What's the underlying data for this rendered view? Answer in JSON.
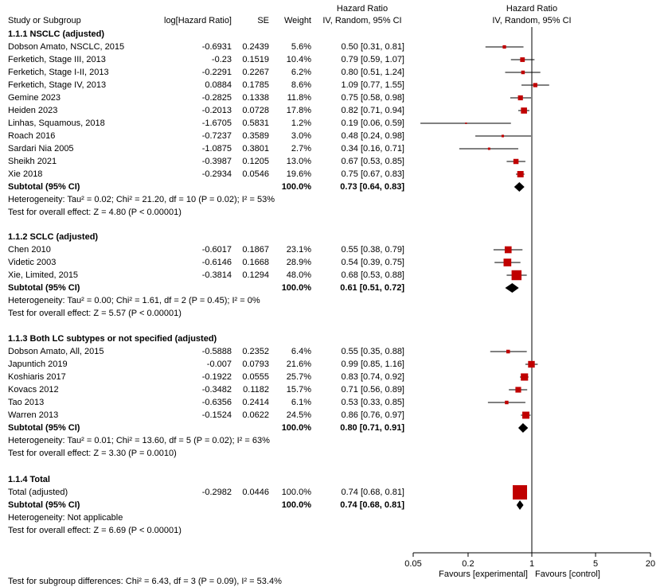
{
  "headers": {
    "study": "Study or Subgroup",
    "estimate": "log[Hazard Ratio]",
    "se": "SE",
    "weight": "Weight",
    "hr_top": "Hazard Ratio",
    "hr_method": "IV, Random, 95% CI",
    "plot_top": "Hazard Ratio",
    "plot_method": "IV, Random, 95% CI"
  },
  "groups": [
    {
      "title": "1.1.1 NSCLC (adjusted)",
      "studies": [
        {
          "name": "Dobson Amato, NSCLC, 2015",
          "est": "-0.6931",
          "se": "0.2439",
          "weight": "5.6%",
          "ci": "0.50 [0.31, 0.81]"
        },
        {
          "name": "Ferketich, Stage III, 2013",
          "est": "-0.23",
          "se": "0.1519",
          "weight": "10.4%",
          "ci": "0.79 [0.59, 1.07]"
        },
        {
          "name": "Ferketich, Stage I-II, 2013",
          "est": "-0.2291",
          "se": "0.2267",
          "weight": "6.2%",
          "ci": "0.80 [0.51, 1.24]"
        },
        {
          "name": "Ferketich, Stage IV, 2013",
          "est": "0.0884",
          "se": "0.1785",
          "weight": "8.6%",
          "ci": "1.09 [0.77, 1.55]"
        },
        {
          "name": "Gemine 2023",
          "est": "-0.2825",
          "se": "0.1338",
          "weight": "11.8%",
          "ci": "0.75 [0.58, 0.98]"
        },
        {
          "name": "Heiden 2023",
          "est": "-0.2013",
          "se": "0.0728",
          "weight": "17.8%",
          "ci": "0.82 [0.71, 0.94]"
        },
        {
          "name": "Linhas, Squamous, 2018",
          "est": "-1.6705",
          "se": "0.5831",
          "weight": "1.2%",
          "ci": "0.19 [0.06, 0.59]"
        },
        {
          "name": "Roach 2016",
          "est": "-0.7237",
          "se": "0.3589",
          "weight": "3.0%",
          "ci": "0.48 [0.24, 0.98]"
        },
        {
          "name": "Sardari Nia 2005",
          "est": "-1.0875",
          "se": "0.3801",
          "weight": "2.7%",
          "ci": "0.34 [0.16, 0.71]"
        },
        {
          "name": "Sheikh 2021",
          "est": "-0.3987",
          "se": "0.1205",
          "weight": "13.0%",
          "ci": "0.67 [0.53, 0.85]"
        },
        {
          "name": "Xie 2018",
          "est": "-0.2934",
          "se": "0.0546",
          "weight": "19.6%",
          "ci": "0.75 [0.67, 0.83]"
        }
      ],
      "subtotal": {
        "label": "Subtotal (95% CI)",
        "weight": "100.0%",
        "ci": "0.73 [0.64, 0.83]"
      },
      "heterogeneity": "Heterogeneity: Tau² = 0.02; Chi² = 21.20, df = 10 (P = 0.02); I² = 53%",
      "overall": "Test for overall effect: Z = 4.80 (P < 0.00001)"
    },
    {
      "title": "1.1.2 SCLC (adjusted)",
      "studies": [
        {
          "name": "Chen 2010",
          "est": "-0.6017",
          "se": "0.1867",
          "weight": "23.1%",
          "ci": "0.55 [0.38, 0.79]"
        },
        {
          "name": "Videtic 2003",
          "est": "-0.6146",
          "se": "0.1668",
          "weight": "28.9%",
          "ci": "0.54 [0.39, 0.75]"
        },
        {
          "name": "Xie, Limited, 2015",
          "est": "-0.3814",
          "se": "0.1294",
          "weight": "48.0%",
          "ci": "0.68 [0.53, 0.88]"
        }
      ],
      "subtotal": {
        "label": "Subtotal (95% CI)",
        "weight": "100.0%",
        "ci": "0.61 [0.51, 0.72]"
      },
      "heterogeneity": "Heterogeneity: Tau² = 0.00; Chi² = 1.61, df = 2 (P = 0.45); I² = 0%",
      "overall": "Test for overall effect: Z = 5.57 (P < 0.00001)"
    },
    {
      "title": "1.1.3 Both LC subtypes or not specified (adjusted)",
      "studies": [
        {
          "name": "Dobson Amato, All, 2015",
          "est": "-0.5888",
          "se": "0.2352",
          "weight": "6.4%",
          "ci": "0.55 [0.35, 0.88]"
        },
        {
          "name": "Japuntich 2019",
          "est": "-0.007",
          "se": "0.0793",
          "weight": "21.6%",
          "ci": "0.99 [0.85, 1.16]"
        },
        {
          "name": "Koshiaris 2017",
          "est": "-0.1922",
          "se": "0.0555",
          "weight": "25.7%",
          "ci": "0.83 [0.74, 0.92]"
        },
        {
          "name": "Kovacs 2012",
          "est": "-0.3482",
          "se": "0.1182",
          "weight": "15.7%",
          "ci": "0.71 [0.56, 0.89]"
        },
        {
          "name": "Tao 2013",
          "est": "-0.6356",
          "se": "0.2414",
          "weight": "6.1%",
          "ci": "0.53 [0.33, 0.85]"
        },
        {
          "name": "Warren 2013",
          "est": "-0.1524",
          "se": "0.0622",
          "weight": "24.5%",
          "ci": "0.86 [0.76, 0.97]"
        }
      ],
      "subtotal": {
        "label": "Subtotal (95% CI)",
        "weight": "100.0%",
        "ci": "0.80 [0.71, 0.91]"
      },
      "heterogeneity": "Heterogeneity: Tau² = 0.01; Chi² = 13.60, df = 5 (P = 0.02); I² = 63%",
      "overall": "Test for overall effect: Z = 3.30 (P = 0.0010)"
    },
    {
      "title": "1.1.4 Total",
      "studies": [
        {
          "name": "Total (adjusted)",
          "est": "-0.2982",
          "se": "0.0446",
          "weight": "100.0%",
          "ci": "0.74 [0.68, 0.81]"
        }
      ],
      "subtotal": {
        "label": "Subtotal (95% CI)",
        "weight": "100.0%",
        "ci": "0.74 [0.68, 0.81]"
      },
      "heterogeneity": "Heterogeneity: Not applicable",
      "overall": "Test for overall effect: Z = 6.69 (P < 0.00001)"
    }
  ],
  "footer": {
    "subgroup_test": "Test for subgroup differences: Chi² = 6.43, df = 3 (P = 0.09), I² = 53.4%",
    "favours_left": "Favours [experimental]",
    "favours_right": "Favours [control]"
  },
  "chart_data": {
    "type": "forest",
    "x_scale": "log",
    "x_ticks": [
      0.05,
      0.2,
      1,
      5,
      20
    ],
    "x_tick_labels": [
      "0.05",
      "0.2",
      "1",
      "5",
      "20"
    ],
    "xlim": [
      0.05,
      20
    ],
    "reference_line": 1,
    "study_color": "#c00000",
    "diamond_color": "#000000",
    "groups": [
      {
        "studies": [
          {
            "hr": 0.5,
            "lo": 0.31,
            "hi": 0.81,
            "weight": 5.6
          },
          {
            "hr": 0.79,
            "lo": 0.59,
            "hi": 1.07,
            "weight": 10.4
          },
          {
            "hr": 0.8,
            "lo": 0.51,
            "hi": 1.24,
            "weight": 6.2
          },
          {
            "hr": 1.09,
            "lo": 0.77,
            "hi": 1.55,
            "weight": 8.6
          },
          {
            "hr": 0.75,
            "lo": 0.58,
            "hi": 0.98,
            "weight": 11.8
          },
          {
            "hr": 0.82,
            "lo": 0.71,
            "hi": 0.94,
            "weight": 17.8
          },
          {
            "hr": 0.19,
            "lo": 0.06,
            "hi": 0.59,
            "weight": 1.2
          },
          {
            "hr": 0.48,
            "lo": 0.24,
            "hi": 0.98,
            "weight": 3.0
          },
          {
            "hr": 0.34,
            "lo": 0.16,
            "hi": 0.71,
            "weight": 2.7
          },
          {
            "hr": 0.67,
            "lo": 0.53,
            "hi": 0.85,
            "weight": 13.0
          },
          {
            "hr": 0.75,
            "lo": 0.67,
            "hi": 0.83,
            "weight": 19.6
          }
        ],
        "subtotal": {
          "hr": 0.73,
          "lo": 0.64,
          "hi": 0.83
        }
      },
      {
        "studies": [
          {
            "hr": 0.55,
            "lo": 0.38,
            "hi": 0.79,
            "weight": 23.1
          },
          {
            "hr": 0.54,
            "lo": 0.39,
            "hi": 0.75,
            "weight": 28.9
          },
          {
            "hr": 0.68,
            "lo": 0.53,
            "hi": 0.88,
            "weight": 48.0
          }
        ],
        "subtotal": {
          "hr": 0.61,
          "lo": 0.51,
          "hi": 0.72
        }
      },
      {
        "studies": [
          {
            "hr": 0.55,
            "lo": 0.35,
            "hi": 0.88,
            "weight": 6.4
          },
          {
            "hr": 0.99,
            "lo": 0.85,
            "hi": 1.16,
            "weight": 21.6
          },
          {
            "hr": 0.83,
            "lo": 0.74,
            "hi": 0.92,
            "weight": 25.7
          },
          {
            "hr": 0.71,
            "lo": 0.56,
            "hi": 0.89,
            "weight": 15.7
          },
          {
            "hr": 0.53,
            "lo": 0.33,
            "hi": 0.85,
            "weight": 6.1
          },
          {
            "hr": 0.86,
            "lo": 0.76,
            "hi": 0.97,
            "weight": 24.5
          }
        ],
        "subtotal": {
          "hr": 0.8,
          "lo": 0.71,
          "hi": 0.91
        }
      },
      {
        "studies": [
          {
            "hr": 0.74,
            "lo": 0.68,
            "hi": 0.81,
            "weight": 100.0
          }
        ],
        "subtotal": {
          "hr": 0.74,
          "lo": 0.68,
          "hi": 0.81
        }
      }
    ]
  }
}
